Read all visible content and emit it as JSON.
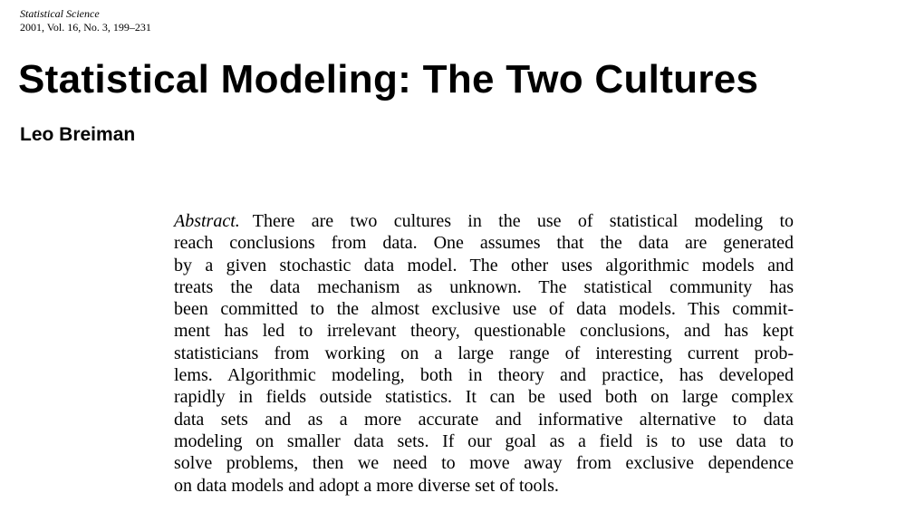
{
  "journal": {
    "name": "Statistical Science",
    "info": "2001, Vol. 16, No. 3, 199–231"
  },
  "paper": {
    "title": "Statistical Modeling: The Two Cultures",
    "author": "Leo Breiman"
  },
  "abstract": {
    "label": "Abstract.",
    "lines": [
      "There are two cultures in the use of statistical modeling to",
      "reach conclusions from data. One assumes that the data are generated",
      "by a given stochastic data model. The other uses algorithmic models and",
      "treats the data mechanism as unknown. The statistical community has",
      "been committed to the almost exclusive use of data models. This commit-",
      "ment has led to irrelevant theory, questionable conclusions, and has kept",
      "statisticians from working on a large range of interesting current prob-",
      "lems. Algorithmic modeling, both in theory and practice, has developed",
      "rapidly in fields outside statistics. It can be used both on large complex",
      "data sets and as a more accurate and informative alternative to data",
      "modeling on smaller data sets. If our goal as a field is to use data to",
      "solve problems, then we need to move away from exclusive dependence",
      "on data models and adopt a more diverse set of tools."
    ]
  }
}
